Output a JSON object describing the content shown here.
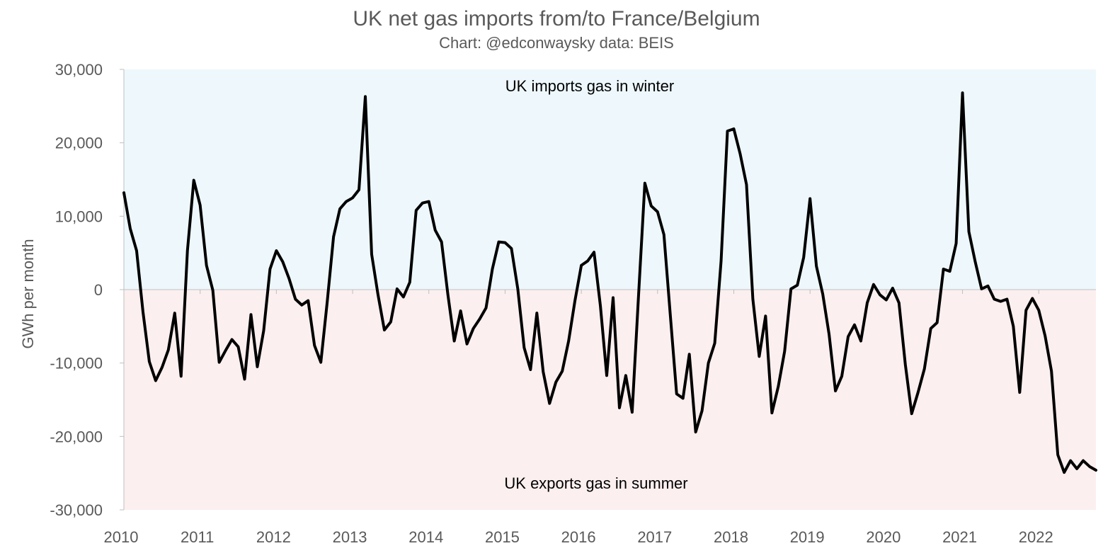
{
  "chart_data": {
    "type": "line",
    "title": "UK net gas imports from/to France/Belgium",
    "subtitle": "Chart: @edconwaysky data: BEIS",
    "ylabel": "GWh per month",
    "xlabel": "",
    "ylim": [
      -30000,
      30000
    ],
    "yticks": [
      30000,
      20000,
      10000,
      0,
      -10000,
      -20000,
      -30000
    ],
    "ytick_labels": [
      "30,000",
      "20,000",
      "10,000",
      "0",
      "-10,000",
      "-20,000",
      "-30,000"
    ],
    "xticks": [
      2010,
      2011,
      2012,
      2013,
      2014,
      2015,
      2016,
      2017,
      2018,
      2019,
      2020,
      2021,
      2022
    ],
    "xtick_labels": [
      "2010",
      "2011",
      "2012",
      "2013",
      "2014",
      "2015",
      "2016",
      "2017",
      "2018",
      "2019",
      "2020",
      "2021",
      "2022"
    ],
    "xlim_dates": [
      "2010-01",
      "2022-10"
    ],
    "regions": [
      {
        "label": "UK imports gas in winter",
        "from": 0,
        "to": 30000,
        "color": "#eef8fc"
      },
      {
        "label": "UK exports gas in summer",
        "from": -30000,
        "to": 0,
        "color": "#fcefef"
      }
    ],
    "grid": false,
    "legend": "none",
    "colors": {
      "line": "#000000",
      "axis": "#bfbfbf",
      "text": "#595959"
    },
    "series": [
      {
        "x": [
          "2010-01",
          "2010-02",
          "2010-03",
          "2010-04",
          "2010-05",
          "2010-06",
          "2010-07",
          "2010-08",
          "2010-09",
          "2010-10",
          "2010-11",
          "2010-12",
          "2011-01",
          "2011-02",
          "2011-03",
          "2011-04",
          "2011-05",
          "2011-06",
          "2011-07",
          "2011-08",
          "2011-09",
          "2011-10",
          "2011-11",
          "2011-12",
          "2012-01",
          "2012-02",
          "2012-03",
          "2012-04",
          "2012-05",
          "2012-06",
          "2012-07",
          "2012-08",
          "2012-09",
          "2012-10",
          "2012-11",
          "2012-12",
          "2013-01",
          "2013-02",
          "2013-03",
          "2013-04",
          "2013-05",
          "2013-06",
          "2013-07",
          "2013-08",
          "2013-09",
          "2013-10",
          "2013-11",
          "2013-12",
          "2014-01",
          "2014-02",
          "2014-03",
          "2014-04",
          "2014-05",
          "2014-06",
          "2014-07",
          "2014-08",
          "2014-09",
          "2014-10",
          "2014-11",
          "2014-12",
          "2015-01",
          "2015-02",
          "2015-03",
          "2015-04",
          "2015-05",
          "2015-06",
          "2015-07",
          "2015-08",
          "2015-09",
          "2015-10",
          "2015-11",
          "2015-12",
          "2016-01",
          "2016-02",
          "2016-03",
          "2016-04",
          "2016-05",
          "2016-06",
          "2016-07",
          "2016-08",
          "2016-09",
          "2016-10",
          "2016-11",
          "2016-12",
          "2017-01",
          "2017-02",
          "2017-03",
          "2017-04",
          "2017-05",
          "2017-06",
          "2017-07",
          "2017-08",
          "2017-09",
          "2017-10",
          "2017-11",
          "2017-12",
          "2018-01",
          "2018-02",
          "2018-03",
          "2018-04",
          "2018-05",
          "2018-06",
          "2018-07",
          "2018-08",
          "2018-09",
          "2018-10",
          "2018-11",
          "2018-12",
          "2019-01",
          "2019-02",
          "2019-03",
          "2019-04",
          "2019-05",
          "2019-06",
          "2019-07",
          "2019-08",
          "2019-09",
          "2019-10",
          "2019-11",
          "2019-12",
          "2020-01",
          "2020-02",
          "2020-03",
          "2020-04",
          "2020-05",
          "2020-06",
          "2020-07",
          "2020-08",
          "2020-09",
          "2020-10",
          "2020-11",
          "2020-12",
          "2021-01",
          "2021-02",
          "2021-03",
          "2021-04",
          "2021-05",
          "2021-06",
          "2021-07",
          "2021-08",
          "2021-09",
          "2021-10",
          "2021-11",
          "2021-12",
          "2022-01",
          "2022-02",
          "2022-03",
          "2022-04",
          "2022-05",
          "2022-06",
          "2022-07",
          "2022-08",
          "2022-09",
          "2022-10"
        ],
        "values": [
          13200,
          8300,
          5300,
          -3000,
          -9800,
          -12400,
          -10600,
          -8200,
          -3200,
          -11800,
          5300,
          14900,
          11500,
          3300,
          -100,
          -9900,
          -8300,
          -6800,
          -7800,
          -12200,
          -3400,
          -10500,
          -5600,
          2800,
          5300,
          3800,
          1500,
          -1300,
          -2100,
          -1500,
          -7600,
          -9900,
          -1700,
          7200,
          11000,
          12000,
          12500,
          13600,
          26300,
          4800,
          -700,
          -5500,
          -4400,
          100,
          -1000,
          1000,
          10800,
          11800,
          12000,
          8100,
          6500,
          -700,
          -7000,
          -2900,
          -7400,
          -5300,
          -4000,
          -2500,
          2800,
          6500,
          6400,
          5600,
          100,
          -7900,
          -10900,
          -3200,
          -11200,
          -15500,
          -12600,
          -11100,
          -7000,
          -1500,
          3300,
          3900,
          5100,
          -2200,
          -11700,
          -1100,
          -16100,
          -11700,
          -16700,
          -900,
          14500,
          11400,
          10600,
          7500,
          -3400,
          -14200,
          -14800,
          -8800,
          -19400,
          -16500,
          -10000,
          -7300,
          3900,
          21600,
          21900,
          18500,
          14300,
          -1300,
          -9100,
          -3600,
          -16800,
          -13200,
          -8400,
          100,
          600,
          4400,
          12400,
          3200,
          -600,
          -6100,
          -13800,
          -11800,
          -6400,
          -4800,
          -7000,
          -1800,
          700,
          -700,
          -1400,
          200,
          -1800,
          -10200,
          -16900,
          -14000,
          -10800,
          -5300,
          -4500,
          2800,
          2500,
          6300,
          26800,
          7900,
          3800,
          100,
          500,
          -1300,
          -1600,
          -1300,
          -5000,
          -14000,
          -2800,
          -1200,
          -2800,
          -6300,
          -11100,
          -22500,
          -24900,
          -23300,
          -24400,
          -23300,
          -24100,
          -24600
        ]
      }
    ]
  }
}
